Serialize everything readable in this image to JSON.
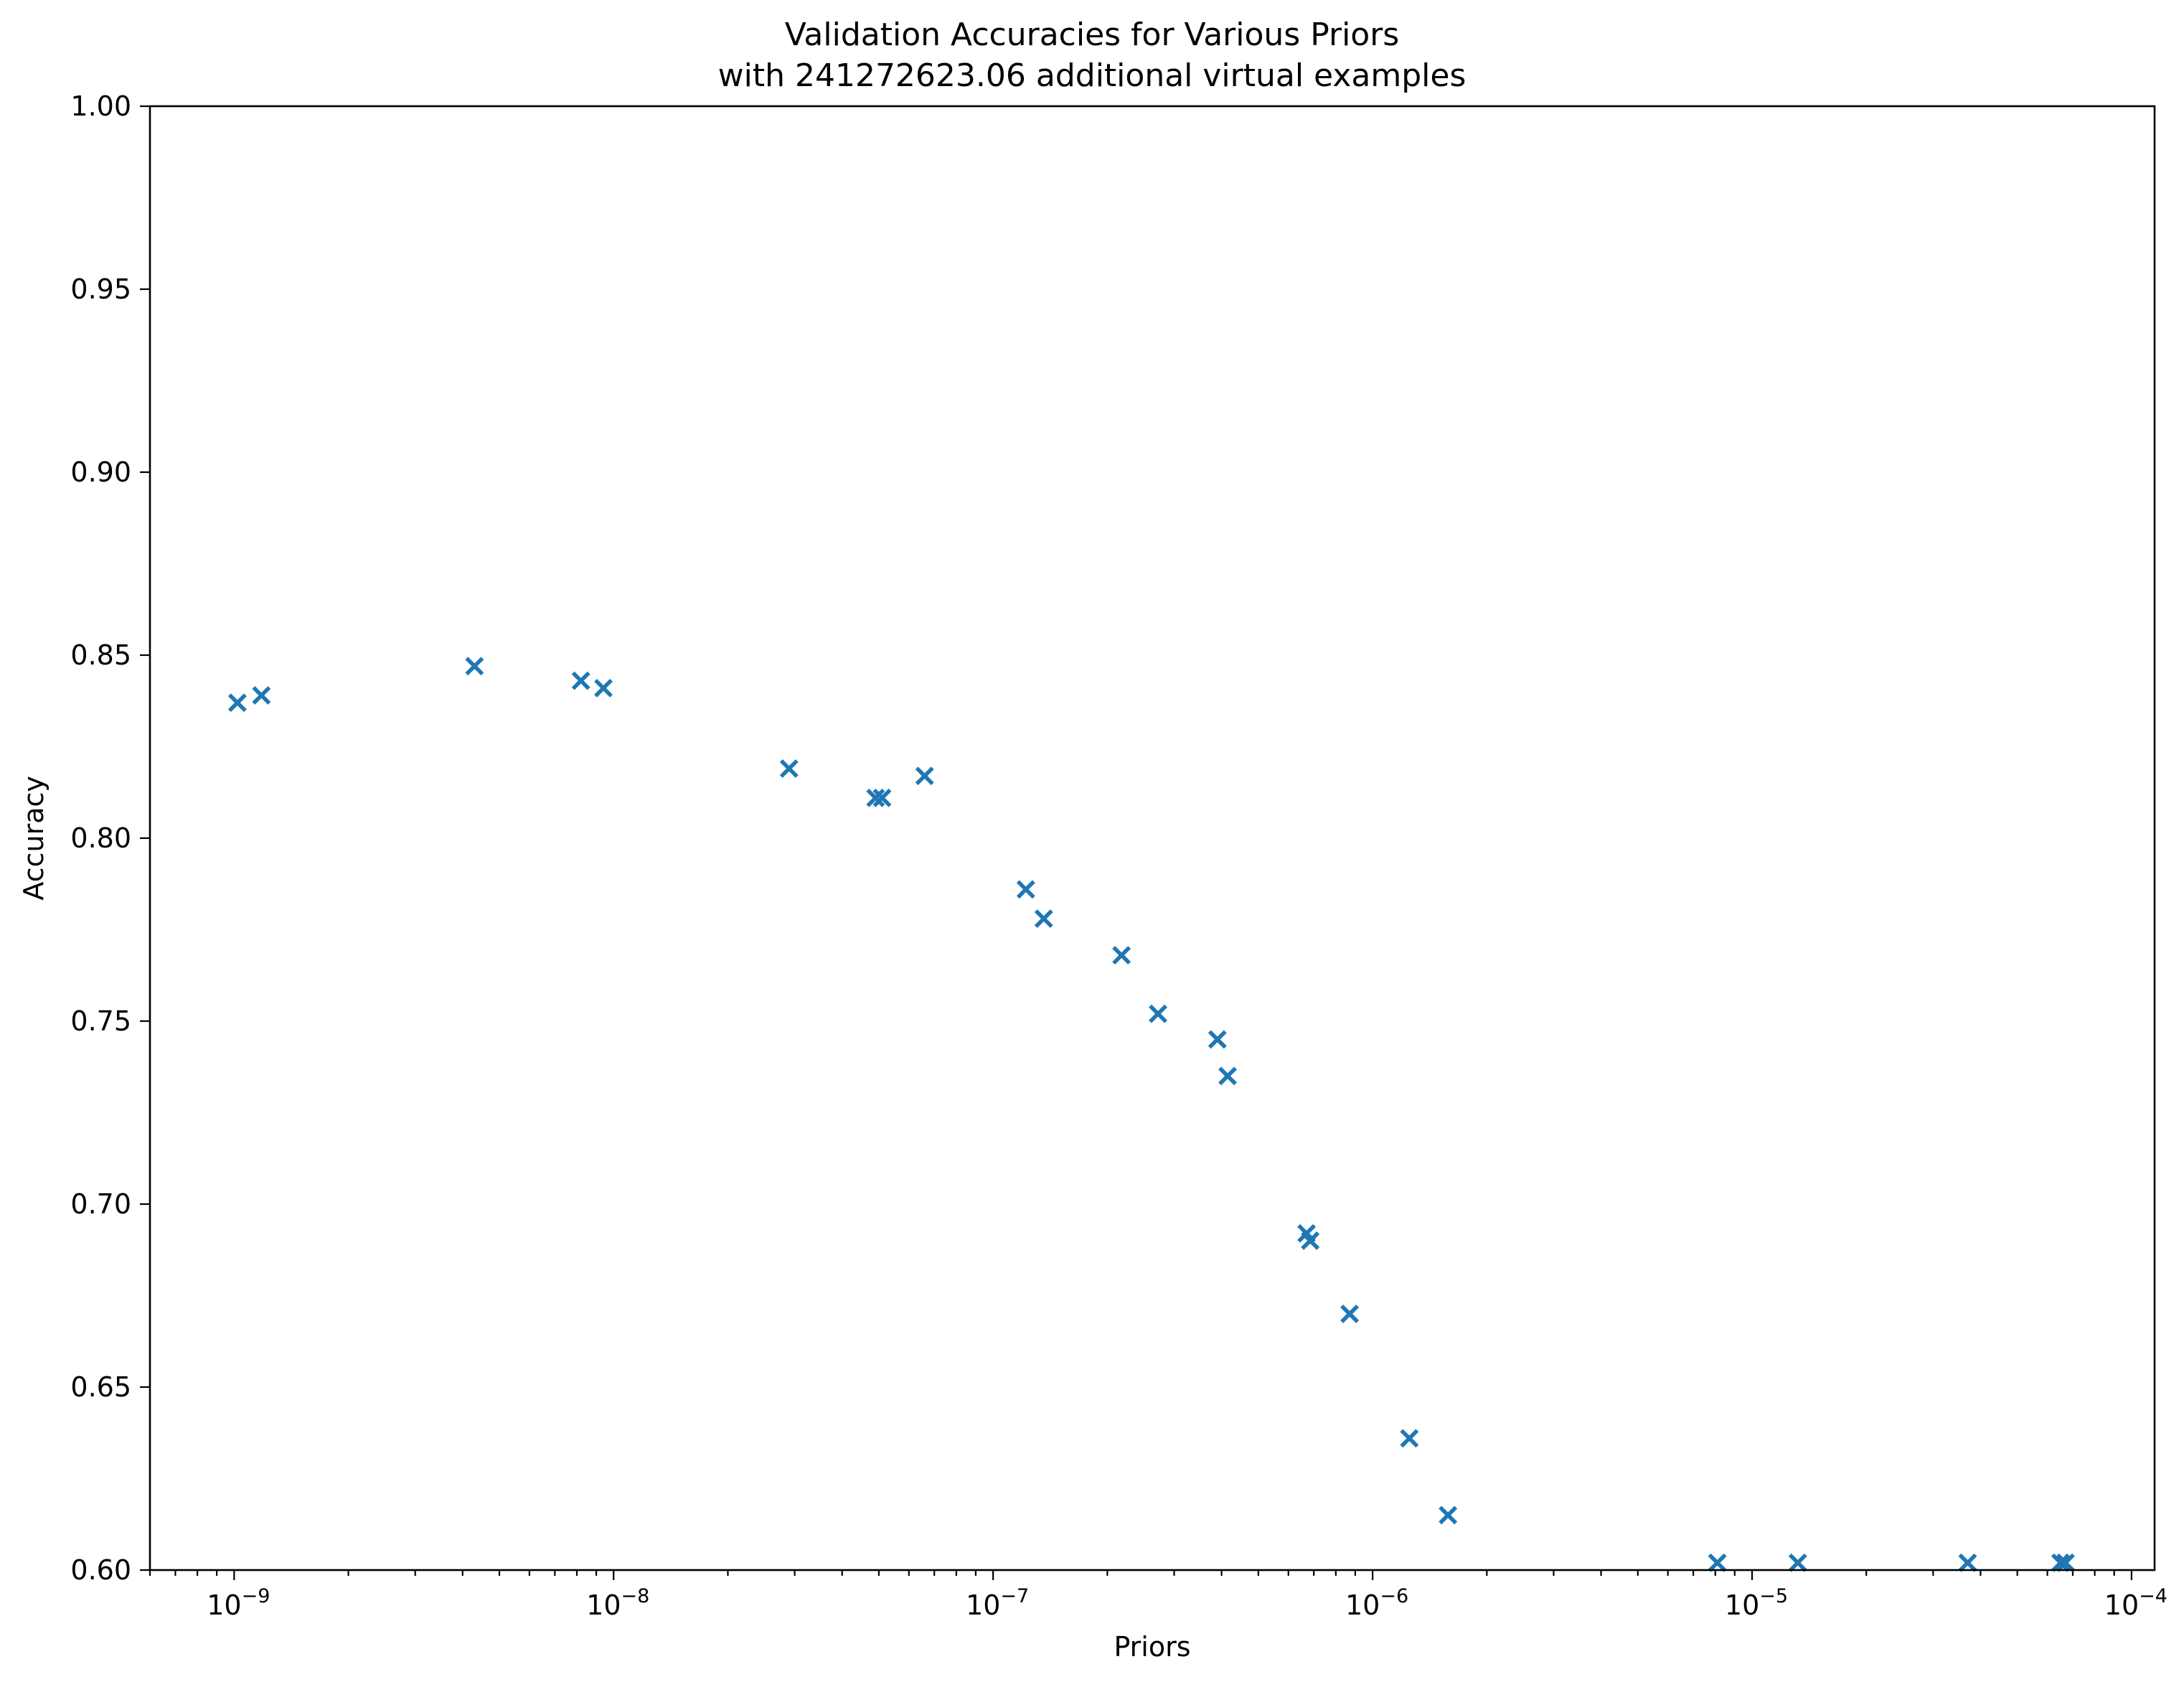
{
  "chart_data": {
    "type": "scatter",
    "title": "Validation Accuracies for Various Priors",
    "subtitle": "with 241272623.06 additional virtual examples",
    "xlabel": "Priors",
    "ylabel": "Accuracy",
    "xscale": "log",
    "xlim": [
      6e-10,
      0.000115
    ],
    "ylim": [
      0.6,
      1.0
    ],
    "x_ticks": [
      {
        "value": 1e-09,
        "base": "10",
        "exp": "−9"
      },
      {
        "value": 1e-08,
        "base": "10",
        "exp": "−8"
      },
      {
        "value": 1e-07,
        "base": "10",
        "exp": "−7"
      },
      {
        "value": 1e-06,
        "base": "10",
        "exp": "−6"
      },
      {
        "value": 1e-05,
        "base": "10",
        "exp": "−5"
      },
      {
        "value": 0.0001,
        "base": "10",
        "exp": "−4"
      }
    ],
    "y_ticks": [
      "0.60",
      "0.65",
      "0.70",
      "0.75",
      "0.80",
      "0.85",
      "0.90",
      "0.95",
      "1.00"
    ],
    "marker": "x",
    "color": "#1f77b4",
    "grid": false,
    "series": [
      {
        "x": [
          1.02e-09,
          1.18e-09,
          4.3e-09,
          8.2e-09,
          9.4e-09,
          2.9e-08,
          4.9e-08,
          5.1e-08,
          6.6e-08,
          1.22e-07,
          1.36e-07,
          2.18e-07,
          2.72e-07,
          3.9e-07,
          4.15e-07,
          6.7e-07,
          6.85e-07,
          8.7e-07,
          1.25e-06,
          1.58e-06,
          8.1e-06,
          1.32e-05,
          3.7e-05,
          6.5e-05,
          6.7e-05
        ],
        "y": [
          0.837,
          0.839,
          0.847,
          0.843,
          0.841,
          0.819,
          0.811,
          0.811,
          0.817,
          0.786,
          0.778,
          0.768,
          0.752,
          0.745,
          0.735,
          0.692,
          0.69,
          0.67,
          0.636,
          0.615,
          0.602,
          0.602,
          0.602,
          0.602,
          0.602
        ]
      }
    ]
  }
}
